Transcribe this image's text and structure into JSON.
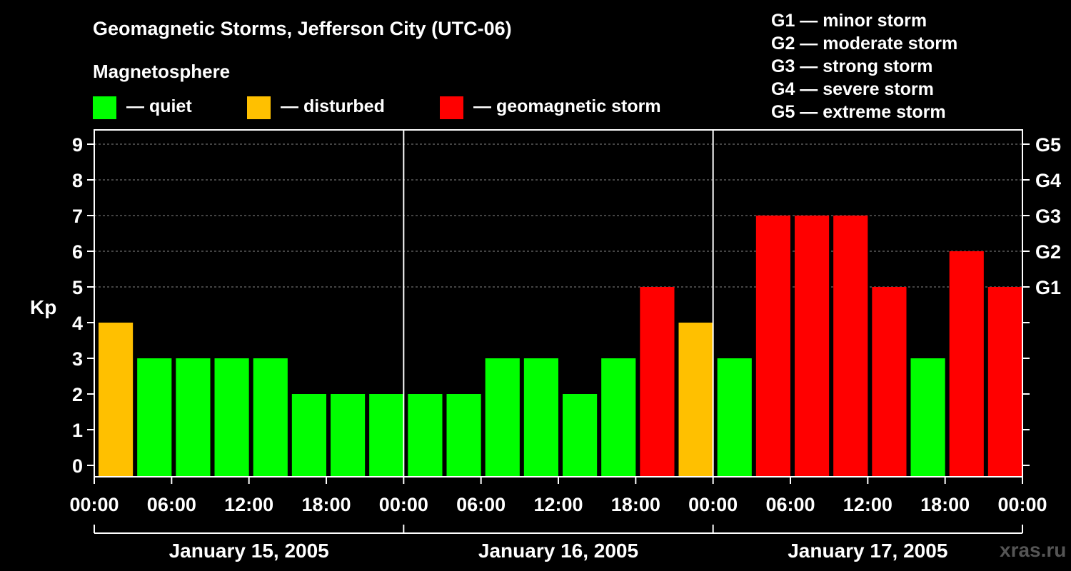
{
  "chart_data": {
    "type": "bar",
    "title": "Geomagnetic Storms, Jefferson City (UTC-06)",
    "legend_title": "Magnetosphere",
    "legend": [
      {
        "key": "quiet",
        "label": "— quiet",
        "color": "#00ff00"
      },
      {
        "key": "disturbed",
        "label": "— disturbed",
        "color": "#ffc000"
      },
      {
        "key": "storm",
        "label": "— geomagnetic storm",
        "color": "#ff0000"
      }
    ],
    "storm_scale": [
      "G1 — minor storm",
      "G2 — moderate storm",
      "G3 — strong storm",
      "G4 — severe storm",
      "G5 — extreme storm"
    ],
    "ylabel": "Kp",
    "ylim": [
      0,
      9
    ],
    "yticks": [
      "0",
      "1",
      "2",
      "3",
      "4",
      "5",
      "6",
      "7",
      "8",
      "9"
    ],
    "right_ticks": [
      {
        "kp": 5,
        "label": "G1"
      },
      {
        "kp": 6,
        "label": "G2"
      },
      {
        "kp": 7,
        "label": "G3"
      },
      {
        "kp": 8,
        "label": "G4"
      },
      {
        "kp": 9,
        "label": "G5"
      }
    ],
    "xticks": [
      "00:00",
      "06:00",
      "12:00",
      "18:00",
      "00:00",
      "06:00",
      "12:00",
      "18:00",
      "00:00",
      "06:00",
      "12:00",
      "18:00",
      "00:00"
    ],
    "days": [
      "January 15, 2005",
      "January 16, 2005",
      "January 17, 2005"
    ],
    "interval_hours": 3,
    "values": [
      4,
      3,
      3,
      3,
      3,
      2,
      2,
      2,
      2,
      2,
      3,
      3,
      2,
      3,
      5,
      4,
      3,
      7,
      7,
      7,
      5,
      3,
      6,
      5
    ],
    "grid": "horizontal dashed at 5-9",
    "watermark": "xras.ru"
  }
}
